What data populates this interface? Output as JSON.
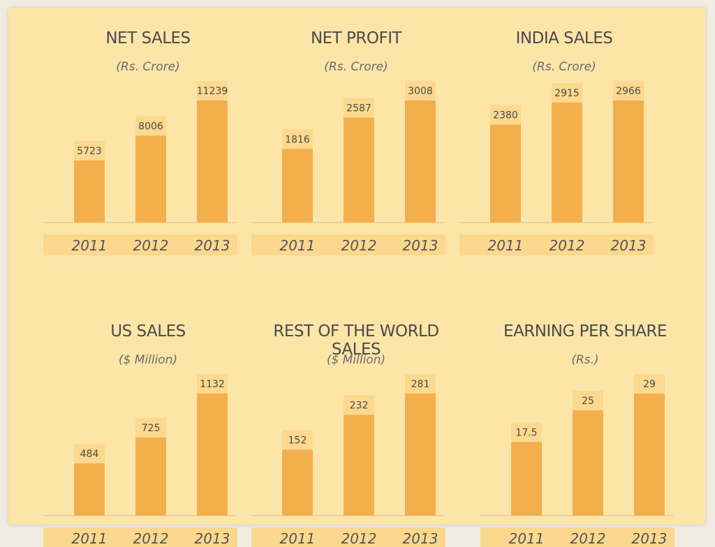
{
  "colors": {
    "bar": "#f3af4c",
    "bar_label_bg": "#fcd98e",
    "axis_band": "#fbd88e",
    "baseline": "#e9d3a5",
    "panel_bg": "#fde5a8"
  },
  "chart_data": [
    {
      "type": "bar",
      "title": "NET SALES",
      "subtitle": "(Rs. Crore)",
      "categories": [
        "2011",
        "2012",
        "2013"
      ],
      "values": [
        5723,
        8006,
        11239
      ],
      "value_labels": [
        "5723",
        "8006",
        "11239"
      ]
    },
    {
      "type": "bar",
      "title": "NET PROFIT",
      "subtitle": "(Rs. Crore)",
      "categories": [
        "2011",
        "2012",
        "2013"
      ],
      "values": [
        1816,
        2587,
        3008
      ],
      "value_labels": [
        "1816",
        "2587",
        "3008"
      ]
    },
    {
      "type": "bar",
      "title": "INDIA SALES",
      "subtitle": "(Rs. Crore)",
      "categories": [
        "2011",
        "2012",
        "2013"
      ],
      "values": [
        2380,
        2915,
        2966
      ],
      "value_labels": [
        "2380",
        "2915",
        "2966"
      ]
    },
    {
      "type": "bar",
      "title": "US SALES",
      "subtitle": "($ Million)",
      "categories": [
        "2011",
        "2012",
        "2013"
      ],
      "values": [
        484,
        725,
        1132
      ],
      "value_labels": [
        "484",
        "725",
        "1132"
      ]
    },
    {
      "type": "bar",
      "title": "REST OF THE WORLD SALES",
      "subtitle": "($ Million)",
      "categories": [
        "2011",
        "2012",
        "2013"
      ],
      "values": [
        152,
        232,
        281
      ],
      "value_labels": [
        "152",
        "232",
        "281"
      ]
    },
    {
      "type": "bar",
      "title": "EARNING PER SHARE",
      "subtitle": "(Rs.)",
      "categories": [
        "2011",
        "2012",
        "2013"
      ],
      "values": [
        17.5,
        25,
        29
      ],
      "value_labels": [
        "17.5",
        "25",
        "29"
      ]
    }
  ]
}
